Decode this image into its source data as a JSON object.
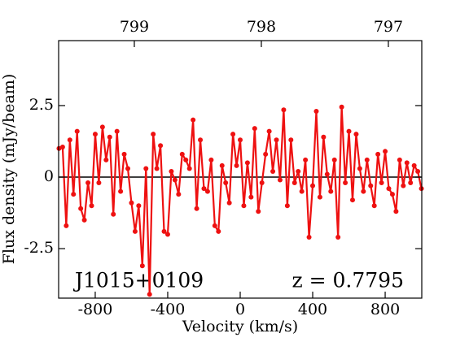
{
  "chart_data": {
    "type": "line",
    "xlabel": "Velocity (km/s)",
    "ylabel": "Flux density (mJy/beam)",
    "annotations": [
      "J1015+0109",
      "z  = 0.7795"
    ],
    "x": [
      -1000,
      -980,
      -960,
      -940,
      -920,
      -900,
      -880,
      -860,
      -840,
      -820,
      -800,
      -780,
      -760,
      -740,
      -720,
      -700,
      -680,
      -660,
      -640,
      -620,
      -600,
      -580,
      -560,
      -540,
      -520,
      -500,
      -480,
      -460,
      -440,
      -420,
      -400,
      -380,
      -360,
      -340,
      -320,
      -300,
      -280,
      -260,
      -240,
      -220,
      -200,
      -180,
      -160,
      -140,
      -120,
      -100,
      -80,
      -60,
      -40,
      -20,
      0,
      20,
      40,
      60,
      80,
      100,
      120,
      140,
      160,
      180,
      200,
      220,
      240,
      260,
      280,
      300,
      320,
      340,
      360,
      380,
      400,
      420,
      440,
      460,
      480,
      500,
      520,
      540,
      560,
      580,
      600,
      620,
      640,
      660,
      680,
      700,
      720,
      740,
      760,
      780,
      800,
      820,
      840,
      860,
      880,
      900,
      920,
      940,
      960,
      980,
      1000
    ],
    "values": [
      1.0,
      1.05,
      -1.7,
      1.3,
      -0.6,
      1.6,
      -1.1,
      -1.5,
      -0.2,
      -1.0,
      1.5,
      -0.2,
      1.75,
      0.6,
      1.4,
      -1.3,
      1.6,
      -0.5,
      0.8,
      0.3,
      -0.9,
      -1.9,
      -1.0,
      -3.1,
      0.3,
      -4.1,
      1.5,
      0.3,
      1.1,
      -1.9,
      -2.0,
      0.2,
      -0.1,
      -0.6,
      0.8,
      0.6,
      0.3,
      2.0,
      -1.1,
      1.3,
      -0.4,
      -0.5,
      0.6,
      -1.7,
      -1.9,
      0.4,
      -0.2,
      -0.9,
      1.5,
      0.4,
      1.3,
      -1.0,
      0.5,
      -0.7,
      1.7,
      -1.2,
      -0.2,
      0.8,
      1.6,
      0.2,
      1.3,
      -0.1,
      2.35,
      -1.0,
      1.3,
      -0.2,
      0.2,
      -0.5,
      0.6,
      -2.1,
      -0.3,
      2.3,
      -0.7,
      1.4,
      0.1,
      -0.5,
      0.6,
      -2.1,
      2.45,
      -0.2,
      1.6,
      -0.8,
      1.5,
      0.3,
      -0.5,
      0.6,
      -0.3,
      -1.0,
      0.8,
      -0.2,
      0.9,
      -0.4,
      -0.6,
      -1.2,
      0.6,
      -0.3,
      0.5,
      -0.2,
      0.4,
      0.2,
      -0.4
    ],
    "color": "#ee1111",
    "xlim": [
      -1002,
      1002
    ],
    "xticks": [
      -800,
      -400,
      0,
      400,
      800
    ],
    "ylim": [
      -4.23,
      4.77
    ],
    "yticks": [
      -2.5,
      0.0,
      2.5
    ],
    "x2lim": [
      799.596,
      796.737
    ],
    "x2ticks": [
      799,
      798,
      797
    ]
  }
}
